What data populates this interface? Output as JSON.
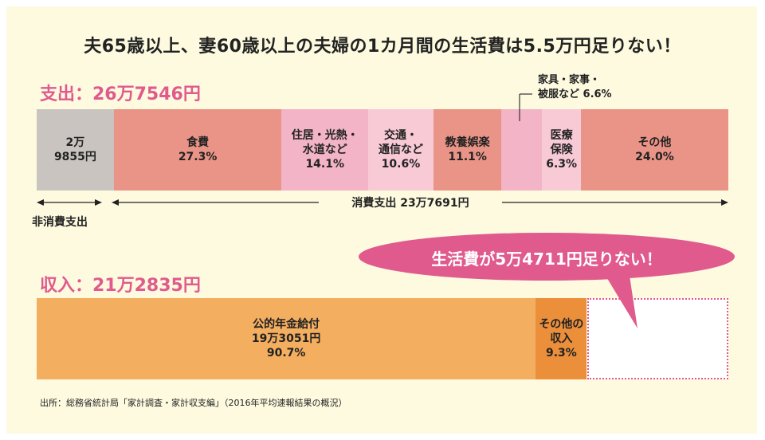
{
  "title": "夫65歳以上、妻60歳以上の夫婦の1カ月間の生活費は5.5万円足りない！",
  "source": "出所：総務省統計局「家計調査・家計収支編」（2016年平均速報結果の概況）",
  "colors": {
    "accent": "#e05a8d",
    "nonconsumption": "#c9c4bf",
    "salmon": "#ea9487",
    "pink": "#f2b4c6",
    "light_pink": "#f7cad6",
    "pension": "#f3ae60",
    "other_income": "#ec8f3b",
    "deficit_box": "#ffffff"
  },
  "chart_data": [
    {
      "type": "bar",
      "title": "支出：26万7546円",
      "segments": [
        {
          "label": "2万\n9855円",
          "value": 29855
        },
        {
          "label": "食費\n27.3%",
          "value": 64897
        },
        {
          "label": "住居・光熱・\n水道など\n14.1%",
          "value": 33518
        },
        {
          "label": "交通・\n通信など\n10.6%",
          "value": 25198
        },
        {
          "label": "教養娯楽\n11.1%",
          "value": 26386
        },
        {
          "label": "家具・家事・\n被服など 6.6%",
          "value": 15689
        },
        {
          "label": "医療\n保険\n6.3%",
          "value": 14976
        },
        {
          "label": "その他\n24.0%",
          "value": 57052
        }
      ],
      "annotations": {
        "nonconsumption": "非消費支出",
        "consumption": "消費支出 23万7691円"
      }
    },
    {
      "type": "bar",
      "title": "収入：21万2835円",
      "segments": [
        {
          "label": "公的年金給付\n19万3051円\n90.7%",
          "value": 193051
        },
        {
          "label": "その他の\n収入\n9.3%",
          "value": 19784
        }
      ],
      "deficit": {
        "label": "生活費が5万4711円足りない！",
        "value": 54711
      }
    }
  ]
}
